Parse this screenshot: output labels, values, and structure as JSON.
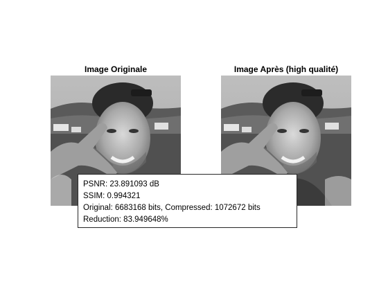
{
  "figure": {
    "panels": [
      {
        "title": "Image Originale"
      },
      {
        "title": "Image Après (high qualité)"
      }
    ],
    "annotation": {
      "psnr": "PSNR: 23.891093 dB",
      "ssim": "SSIM: 0.994321",
      "bits": "Original: 6683168 bits, Compressed: 1072672 bits",
      "reduction": "Reduction: 83.949648%"
    }
  },
  "colors": {
    "background": "#ffffff",
    "annotation_border": "#262626"
  }
}
